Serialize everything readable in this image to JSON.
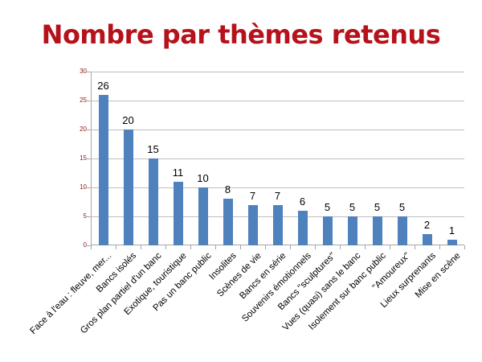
{
  "title": "Nombre par thèmes retenus",
  "colors": {
    "title": "#B5121B",
    "bar": "#4F81BD",
    "ytick": "#8B1A1A",
    "grid": "#BFBFBF"
  },
  "chart_data": {
    "type": "bar",
    "title": "Nombre par thèmes retenus",
    "xlabel": "",
    "ylabel": "",
    "ylim": [
      0,
      30
    ],
    "yticks": [
      0,
      5,
      10,
      15,
      20,
      25,
      30
    ],
    "grid": true,
    "legend": null,
    "data_labels": true,
    "categories": [
      "Face à l'eau : fleuve, mer...",
      "Bancs isolés",
      "Gros plan partiel d'un banc",
      "Exotique, touristique",
      "Pas un banc public",
      "Insolites",
      "Scènes de vie",
      "Bancs en série",
      "Souvenirs émotionnels",
      "Bancs \"sculptures\"",
      "Vues (quasi) sans le banc",
      "Isolement sur banc public",
      "\"Amoureux\"",
      "Lieux surprenants",
      "Mise en scène"
    ],
    "values": [
      26,
      20,
      15,
      11,
      10,
      8,
      7,
      7,
      6,
      5,
      5,
      5,
      5,
      2,
      1
    ]
  }
}
